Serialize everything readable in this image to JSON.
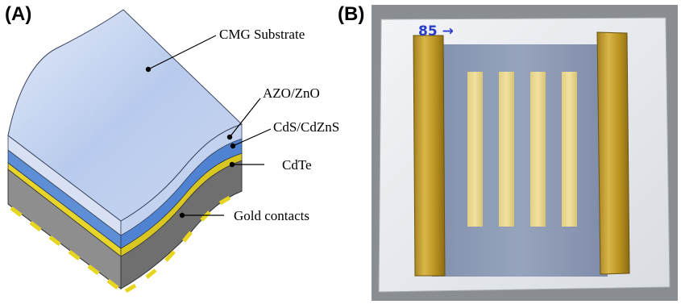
{
  "panels": {
    "a": {
      "label": "(A)"
    },
    "b": {
      "label": "(B)",
      "handwriting": "85 →"
    }
  },
  "layers": [
    {
      "name": "CMG Substrate",
      "color": "#c6d5ee"
    },
    {
      "name": "AZO/ZnO",
      "color": "#5b8fd8"
    },
    {
      "name": "CdS/CdZnS",
      "color": "#2f4f6f"
    },
    {
      "name": "CdTe",
      "color": "#808080"
    },
    {
      "name": "Gold contacts",
      "color": "#e5d62a"
    }
  ],
  "photo": {
    "gold_strip_count": 4
  }
}
